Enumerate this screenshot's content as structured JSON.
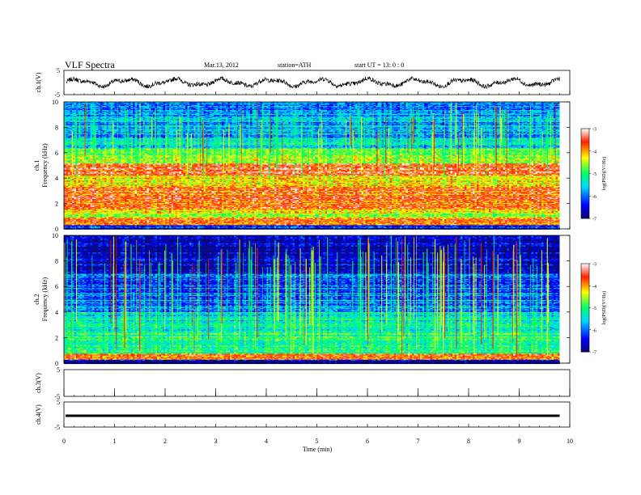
{
  "header": {
    "title": "VLF  Spectra",
    "date": "Mar.13, 2012",
    "station": "station=ATH",
    "start": "start  UT  =    13: 0  : 0"
  },
  "chart_data": [
    {
      "type": "line",
      "panel": "ch1-waveform",
      "ylabel": "ch.1(V)",
      "ylim": [
        -5,
        5
      ],
      "y_ticks": [
        "5",
        "-5"
      ],
      "x_range_min": [
        0,
        9.8
      ],
      "description_values": "noisy waveform oscillating roughly between -2 and +2 V"
    },
    {
      "type": "heatmap",
      "panel": "ch1-spectrogram",
      "ylabel": "Frequency  (kHz)",
      "channel_label": "ch.1",
      "ylim": [
        0,
        10
      ],
      "y_ticks": [
        "0",
        "2",
        "4",
        "6",
        "8",
        "10"
      ],
      "x_range_min": [
        0,
        9.8
      ],
      "colorbar": {
        "label": "log(PSD)(V²/Hz)",
        "range": [
          -7,
          -3
        ],
        "ticks": [
          "-3",
          "-4",
          "-5",
          "-6",
          "-7"
        ]
      },
      "band_levels_by_khz": [
        {
          "from": 0,
          "to": 0.3,
          "level": -6.5
        },
        {
          "from": 0.3,
          "to": 1.0,
          "level": -3.9
        },
        {
          "from": 1.0,
          "to": 1.6,
          "level": -4.4
        },
        {
          "from": 1.6,
          "to": 3.4,
          "level": -3.8
        },
        {
          "from": 3.4,
          "to": 4.2,
          "level": -4.4
        },
        {
          "from": 4.2,
          "to": 5.2,
          "level": -3.6
        },
        {
          "from": 5.2,
          "to": 5.8,
          "level": -4.6
        },
        {
          "from": 5.8,
          "to": 6.4,
          "level": -5.0
        },
        {
          "from": 6.4,
          "to": 7.2,
          "level": -5.4
        },
        {
          "from": 7.2,
          "to": 10,
          "level": -5.8
        }
      ]
    },
    {
      "type": "heatmap",
      "panel": "ch2-spectrogram",
      "ylabel": "Frequency  (kHz)",
      "channel_label": "ch.2",
      "ylim": [
        0,
        10
      ],
      "y_ticks": [
        "0",
        "2",
        "4",
        "6",
        "8",
        "10"
      ],
      "x_range_min": [
        0,
        9.8
      ],
      "colorbar": {
        "label": "log(PSD)(V²/Hz)",
        "range": [
          -7,
          -3
        ],
        "ticks": [
          "-3",
          "-4",
          "-5",
          "-6",
          "-7"
        ]
      },
      "band_levels_by_khz": [
        {
          "from": 0,
          "to": 0.3,
          "level": -6.8
        },
        {
          "from": 0.3,
          "to": 0.8,
          "level": -3.8
        },
        {
          "from": 0.8,
          "to": 2.5,
          "level": -5.0
        },
        {
          "from": 2.5,
          "to": 4.0,
          "level": -5.4
        },
        {
          "from": 4.0,
          "to": 5.5,
          "level": -5.9
        },
        {
          "from": 5.5,
          "to": 7.0,
          "level": -6.1
        },
        {
          "from": 7.0,
          "to": 10,
          "level": -6.7
        }
      ]
    },
    {
      "type": "line",
      "panel": "ch3-waveform",
      "ylabel": "ch.3(V)",
      "ylim": [
        -5,
        5
      ],
      "y_ticks": [
        "5",
        "-5"
      ],
      "values": "empty (no signal drawn)"
    },
    {
      "type": "line",
      "panel": "ch4-waveform",
      "ylabel": "ch.4(V)",
      "ylim": [
        -5,
        5
      ],
      "y_ticks": [
        "5",
        "-5"
      ],
      "constant_value": -0.5,
      "x_range_min": [
        0,
        9.8
      ]
    }
  ],
  "x_axis": {
    "label": "Time  (min)",
    "range": [
      0,
      10
    ],
    "ticks": [
      "0",
      "1",
      "2",
      "3",
      "4",
      "5",
      "6",
      "7",
      "8",
      "9",
      "10"
    ]
  },
  "colors": {
    "axis": "#000000",
    "waveform": "#000000",
    "colormap": [
      "#0a0a6e",
      "#0000ff",
      "#00d8ff",
      "#00ff66",
      "#ffff00",
      "#ff2000",
      "#ffffff"
    ]
  }
}
